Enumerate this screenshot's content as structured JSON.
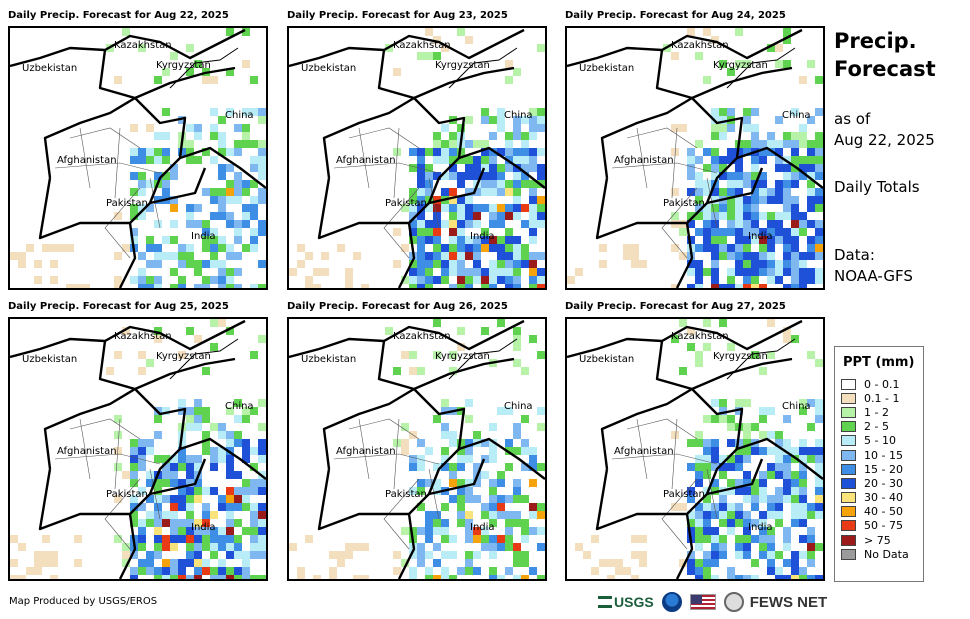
{
  "panels": [
    {
      "title": "Daily Precip. Forecast for Aug 22, 2025",
      "wet_level": 1,
      "storm_level": 1
    },
    {
      "title": "Daily Precip. Forecast for Aug 23, 2025",
      "wet_level": 3,
      "storm_level": 3
    },
    {
      "title": "Daily Precip. Forecast for Aug 24, 2025",
      "wet_level": 3,
      "storm_level": 1
    },
    {
      "title": "Daily Precip. Forecast for Aug 25, 2025",
      "wet_level": 2,
      "storm_level": 2
    },
    {
      "title": "Daily Precip. Forecast for Aug 26, 2025",
      "wet_level": 1,
      "storm_level": 2
    },
    {
      "title": "Daily Precip. Forecast for Aug 27, 2025",
      "wet_level": 2,
      "storm_level": 1
    }
  ],
  "map_labels": {
    "kazakhstan": "Kazakhstan",
    "uzbekistan": "Uzbekistan",
    "kyrgyzstan": "Kyrgyzstan",
    "china": "China",
    "afghanistan": "Afghanistan",
    "pakistan": "Pakistan",
    "india": "India"
  },
  "side": {
    "title_line1": "Precip.",
    "title_line2": "Forecast",
    "asof_line1": "as of",
    "asof_line2": "Aug 22, 2025",
    "totals": "Daily Totals",
    "data_line1": "Data:",
    "data_line2": "NOAA-GFS"
  },
  "legend": {
    "title": "PPT (mm)",
    "items": [
      {
        "label": "0 - 0.1",
        "color": "#ffffff"
      },
      {
        "label": "0.1 - 1",
        "color": "#f3dfbd"
      },
      {
        "label": "1 - 2",
        "color": "#b6f2a8"
      },
      {
        "label": "2 - 5",
        "color": "#5fd24f"
      },
      {
        "label": "5 - 10",
        "color": "#b8ecf7"
      },
      {
        "label": "10 - 15",
        "color": "#7fb7f0"
      },
      {
        "label": "15 - 20",
        "color": "#3f8ee6"
      },
      {
        "label": "20 - 30",
        "color": "#1e50d8"
      },
      {
        "label": "30 - 40",
        "color": "#fbe37c"
      },
      {
        "label": "40 - 50",
        "color": "#f5a20b"
      },
      {
        "label": "50 - 75",
        "color": "#e83a14"
      },
      {
        "label": "> 75",
        "color": "#9b1b1b"
      },
      {
        "label": "No Data",
        "color": "#9b9b9b"
      }
    ]
  },
  "footer": {
    "produced_by": "Map Produced by USGS/EROS"
  },
  "logos": {
    "usgs": "USGS",
    "fews": "FEWS NET"
  }
}
